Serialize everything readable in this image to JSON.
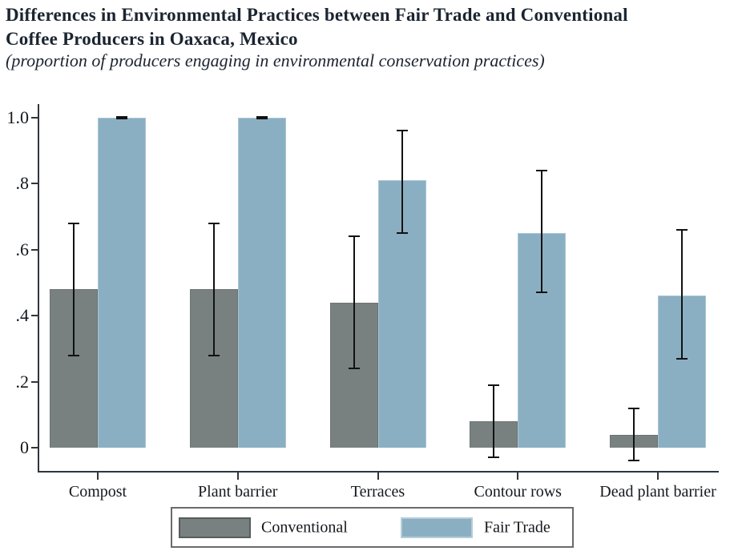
{
  "header": {
    "title_line1": "Differences in Environmental Practices between Fair Trade and Conventional",
    "title_line2": "Coffee Producers in Oaxaca, Mexico",
    "subtitle": "(proportion of producers engaging in environmental conservation practices)"
  },
  "chart_data": {
    "type": "bar",
    "title": "Differences in Environmental Practices between Fair Trade and Conventional Coffee Producers in Oaxaca, Mexico",
    "subtitle": "(proportion of producers engaging in environmental conservation practices)",
    "categories": [
      "Compost",
      "Plant barrier",
      "Terraces",
      "Contour rows",
      "Dead plant barrier"
    ],
    "series": [
      {
        "name": "Conventional",
        "color": "#798080",
        "border_color": "#6d7473",
        "values": [
          0.48,
          0.48,
          0.44,
          0.08,
          0.04
        ],
        "ci_low": [
          0.28,
          0.28,
          0.24,
          -0.03,
          -0.04
        ],
        "ci_high": [
          0.68,
          0.68,
          0.64,
          0.19,
          0.12
        ]
      },
      {
        "name": "Fair Trade",
        "color": "#8bafc2",
        "border_color": "#a9c6d3",
        "values": [
          1.0,
          1.0,
          0.81,
          0.65,
          0.46
        ],
        "ci_low": [
          1.0,
          1.0,
          0.65,
          0.47,
          0.27
        ],
        "ci_high": [
          1.0,
          1.0,
          0.96,
          0.84,
          0.66
        ]
      }
    ],
    "xlabel": "",
    "ylabel": "",
    "y_ticks": [
      0,
      0.2,
      0.4,
      0.6,
      0.8,
      1.0
    ],
    "y_tick_labels": [
      "0",
      ".2",
      ".4",
      ".6",
      ".8",
      "1.0"
    ],
    "ylim": [
      -0.075,
      1.04
    ],
    "grid": false,
    "error_bars": true,
    "legend_position": "bottom"
  },
  "legend": {
    "items": [
      {
        "label": "Conventional",
        "color": "#798080",
        "border_color": "#565d5c"
      },
      {
        "label": "Fair Trade",
        "color": "#8bafc2",
        "border_color": "#b5cdd9"
      }
    ]
  }
}
